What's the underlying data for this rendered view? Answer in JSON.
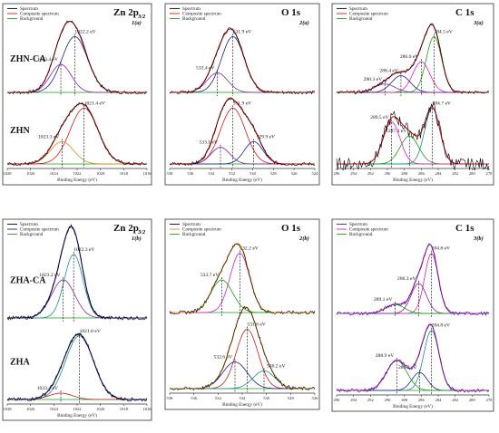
{
  "chart_data": [
    {
      "type": "line",
      "panel_label": "1(a)",
      "title": "Zn 2p",
      "title_sub": "3/2",
      "xlabel": "Binding Energy (eV)",
      "xlim": [
        1028,
        1016
      ],
      "xticks": [
        1028,
        1026,
        1024,
        1022,
        1020,
        1018,
        1016
      ],
      "legend": [
        "Spectrum",
        "Composite spectrum",
        "Background"
      ],
      "legend_colors": [
        "#000000",
        "#d01818",
        "#14a014"
      ],
      "traces": [
        {
          "label": "ZHN-CA",
          "peaks": [
            {
              "center": 1022.2,
              "label": "1022.2 eV",
              "height": 1.0,
              "width": 1.1,
              "color": "#1e1e8c"
            },
            {
              "center": 1023.4,
              "label": "1023.4 eV",
              "height": 0.5,
              "width": 0.9,
              "color": "#8a1fb4"
            }
          ]
        },
        {
          "label": "ZHN",
          "peaks": [
            {
              "center": 1021.4,
              "label": "1021.4 eV",
              "height": 1.0,
              "width": 1.2,
              "color": "#d01818"
            },
            {
              "center": 1023.3,
              "label": "1023.3 eV",
              "height": 0.4,
              "width": 1.0,
              "color": "#e08a1f"
            }
          ]
        }
      ]
    },
    {
      "type": "line",
      "panel_label": "2(a)",
      "title": "O 1s",
      "xlabel": "Binding Energy (eV)",
      "xlim": [
        538,
        524
      ],
      "xticks": [
        538,
        536,
        534,
        532,
        530,
        528,
        526,
        524
      ],
      "legend": [
        "Spectrum",
        "Composite spectrum",
        "Background"
      ],
      "legend_colors": [
        "#000000",
        "#d01818",
        "#14a014"
      ],
      "traces": [
        {
          "label": "",
          "peaks": [
            {
              "center": 531.9,
              "label": "531.9 eV",
              "height": 1.0,
              "width": 1.1,
              "color": "#1e1e8c"
            },
            {
              "center": 533.4,
              "label": "533.4 eV",
              "height": 0.35,
              "width": 1.0,
              "color": "#8a1fb4"
            }
          ]
        },
        {
          "label": "",
          "peaks": [
            {
              "center": 531.9,
              "label": "531.9 eV",
              "height": 1.0,
              "width": 1.2,
              "color": "#d01818"
            },
            {
              "center": 533.1,
              "label": "533.1 eV",
              "height": 0.3,
              "width": 0.9,
              "color": "#8a1fb4"
            },
            {
              "center": 529.9,
              "label": "529.9 eV",
              "height": 0.4,
              "width": 0.9,
              "color": "#1e1e8c"
            }
          ]
        }
      ]
    },
    {
      "type": "line",
      "panel_label": "3(a)",
      "title": "C 1s",
      "xlabel": "Binding Energy (eV)",
      "xlim": [
        296,
        278
      ],
      "xticks": [
        296,
        294,
        292,
        290,
        288,
        286,
        284,
        282,
        280,
        278
      ],
      "legend": [
        "Spectrum",
        "Composite spectrum",
        "Background"
      ],
      "legend_colors": [
        "#000000",
        "#d01818",
        "#14a014"
      ],
      "traces": [
        {
          "label": "",
          "peaks": [
            {
              "center": 284.5,
              "label": "284.5 eV",
              "height": 1.0,
              "width": 0.9,
              "color": "#14a014"
            },
            {
              "center": 286.0,
              "label": "286.0 eV",
              "height": 0.55,
              "width": 1.0,
              "color": "#e01eb4"
            },
            {
              "center": 288.4,
              "label": "288.4 eV",
              "height": 0.3,
              "width": 1.1,
              "color": "#1e1e8c"
            },
            {
              "center": 290.3,
              "label": "290.3 eV",
              "height": 0.15,
              "width": 1.2,
              "color": "#8a1fb4"
            }
          ]
        },
        {
          "label": "",
          "peaks": [
            {
              "center": 284.7,
              "label": "284.7 eV",
              "height": 1.0,
              "width": 0.9,
              "color": "#1e8c8c"
            },
            {
              "center": 287.4,
              "label": "287.4 eV",
              "height": 0.5,
              "width": 1.1,
              "color": "#14a014"
            },
            {
              "center": 289.5,
              "label": "289.5 eV",
              "height": 0.75,
              "width": 1.0,
              "color": "#e01eb4"
            }
          ]
        }
      ]
    },
    {
      "type": "line",
      "panel_label": "1(b)",
      "title": "Zn 2p",
      "title_sub": "3/2",
      "xlabel": "Binding Energy (eV)",
      "xlim": [
        1028,
        1016
      ],
      "xticks": [
        1028,
        1026,
        1024,
        1022,
        1020,
        1018,
        1016
      ],
      "legend": [
        "Spectrum",
        "Composite spectrum",
        "Background"
      ],
      "legend_colors": [
        "#000000",
        "#1e1e8c",
        "#14a014"
      ],
      "traces": [
        {
          "label": "ZHA-CA",
          "peaks": [
            {
              "center": 1022.3,
              "label": "1022.3 eV",
              "height": 1.0,
              "width": 0.8,
              "color": "#1e8c8c"
            },
            {
              "center": 1023.2,
              "label": "1023.2 eV",
              "height": 0.6,
              "width": 1.0,
              "color": "#8a1fb4"
            }
          ]
        },
        {
          "label": "ZHA",
          "peaks": [
            {
              "center": 1021.8,
              "label": "1021.8 eV",
              "height": 1.0,
              "width": 1.2,
              "color": "#1e8c8c"
            },
            {
              "center": 1023.4,
              "label": "1023.4 eV",
              "height": 0.1,
              "width": 1.0,
              "color": "#d01818"
            }
          ]
        }
      ]
    },
    {
      "type": "line",
      "panel_label": "2(b)",
      "title": "O 1s",
      "xlabel": "Binding Energy (eV)",
      "xlim": [
        538,
        526
      ],
      "xticks": [
        538,
        536,
        534,
        532,
        530,
        528,
        526
      ],
      "legend": [
        "Spectrum",
        "Composite spectrum",
        "Background"
      ],
      "legend_colors": [
        "#000000",
        "#e08a1f",
        "#14a014"
      ],
      "traces": [
        {
          "label": "",
          "peaks": [
            {
              "center": 532.2,
              "label": "532.2 eV",
              "height": 1.0,
              "width": 0.8,
              "color": "#e01eb4"
            },
            {
              "center": 533.7,
              "label": "533.7 eV",
              "height": 0.55,
              "width": 0.9,
              "color": "#14a014"
            }
          ]
        },
        {
          "label": "",
          "peaks": [
            {
              "center": 531.6,
              "label": "531.6 eV",
              "height": 1.0,
              "width": 0.9,
              "color": "#d01818"
            },
            {
              "center": 532.6,
              "label": "532.6 eV",
              "height": 0.45,
              "width": 1.0,
              "color": "#1e1e8c"
            },
            {
              "center": 530.2,
              "label": "530.2 eV",
              "height": 0.3,
              "width": 0.9,
              "color": "#1e8c8c"
            }
          ]
        }
      ]
    },
    {
      "type": "line",
      "panel_label": "3(b)",
      "title": "C 1s",
      "xlabel": "Binding Energy (eV)",
      "xlim": [
        296,
        278
      ],
      "xticks": [
        296,
        294,
        292,
        290,
        288,
        286,
        284,
        282,
        280,
        278
      ],
      "legend": [
        "Spectrum",
        "Composite spectrum",
        "Background"
      ],
      "legend_colors": [
        "#1e1e8c",
        "#e01eb4",
        "#14a014"
      ],
      "traces": [
        {
          "label": "",
          "peaks": [
            {
              "center": 284.8,
              "label": "284.8 eV",
              "height": 1.0,
              "width": 0.8,
              "color": "#e01eb4"
            },
            {
              "center": 286.3,
              "label": "286.3 eV",
              "height": 0.5,
              "width": 0.9,
              "color": "#8a1fb4"
            },
            {
              "center": 289.1,
              "label": "289.1 eV",
              "height": 0.15,
              "width": 1.1,
              "color": "#14a014"
            }
          ]
        },
        {
          "label": "",
          "peaks": [
            {
              "center": 284.8,
              "label": "284.8 eV",
              "height": 1.0,
              "width": 0.9,
              "color": "#1e8c8c"
            },
            {
              "center": 286.2,
              "label": "286.2 eV",
              "height": 0.3,
              "width": 0.9,
              "color": "#1e1e8c"
            },
            {
              "center": 288.9,
              "label": "288.9 eV",
              "height": 0.5,
              "width": 1.2,
              "color": "#14a014"
            }
          ]
        }
      ]
    }
  ]
}
